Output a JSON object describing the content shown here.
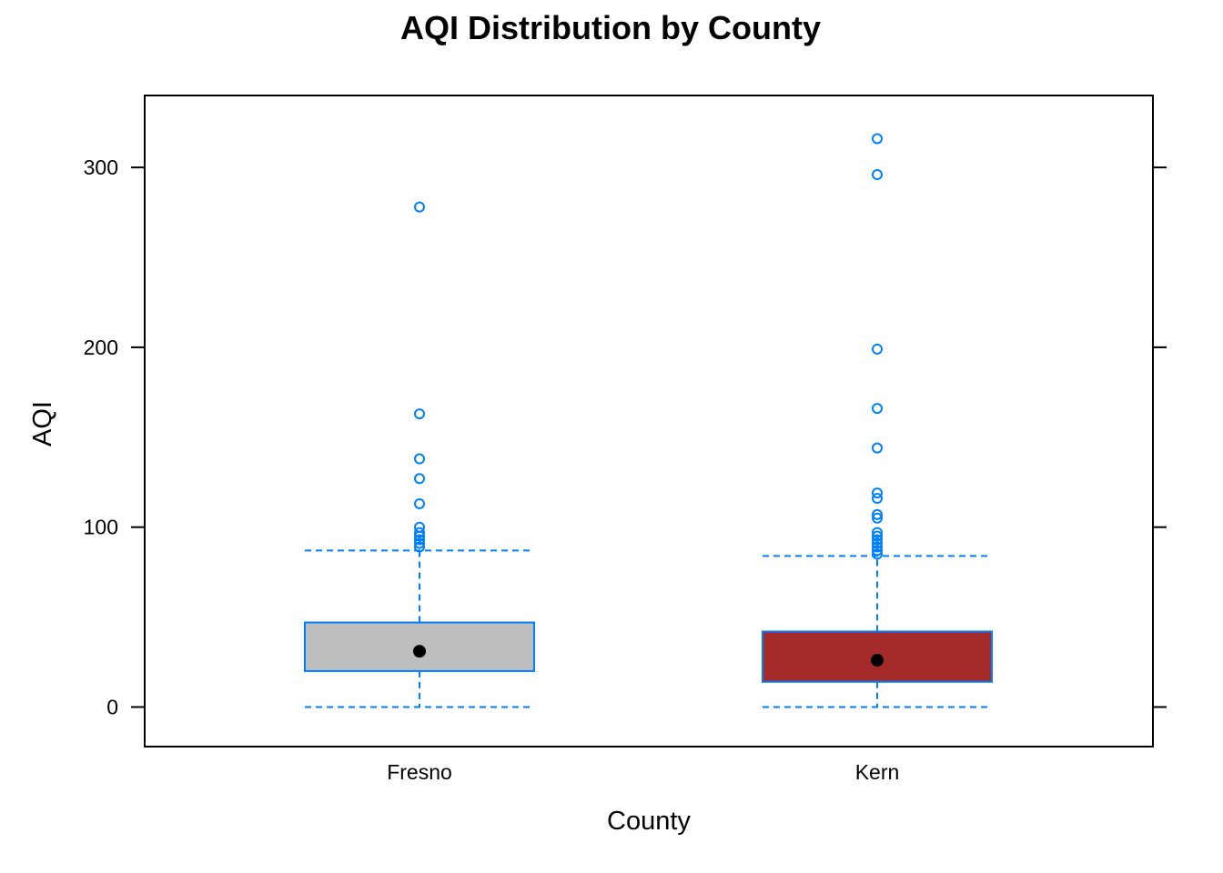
{
  "chart_data": {
    "type": "boxplot",
    "title": "AQI Distribution by County",
    "xlabel": "County",
    "ylabel": "AQI",
    "ylim": [
      -22,
      340
    ],
    "yticks": [
      0,
      100,
      200,
      300
    ],
    "ytick_labels": [
      "0",
      "100",
      "200",
      "300"
    ],
    "categories": [
      "Fresno",
      "Kern"
    ],
    "grid": false,
    "legend": "none",
    "colors": {
      "frame": "#000000",
      "box_border": "#0080ff",
      "whisker": "#0080ff",
      "outlier": "#0080ff",
      "median": "#000000"
    },
    "series": [
      {
        "category": "Fresno",
        "fill": "#bebebe",
        "whisker_low": 0,
        "q1": 20,
        "median": 31,
        "q3": 47,
        "whisker_high": 87,
        "outliers": [
          89,
          91,
          93,
          95,
          97,
          100,
          113,
          127,
          138,
          163,
          278
        ]
      },
      {
        "category": "Kern",
        "fill": "#a52a2a",
        "whisker_low": 0,
        "q1": 14,
        "median": 26,
        "q3": 42,
        "whisker_high": 84,
        "outliers": [
          85,
          87,
          89,
          91,
          93,
          95,
          97,
          105,
          107,
          116,
          119,
          144,
          166,
          199,
          296,
          316
        ]
      }
    ]
  }
}
